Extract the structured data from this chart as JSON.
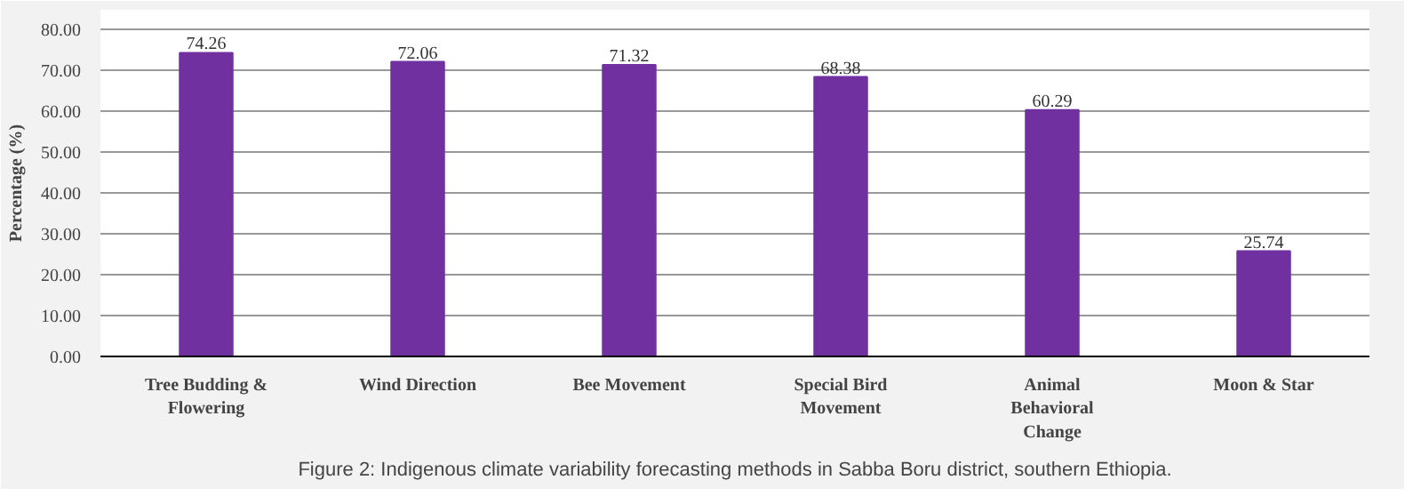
{
  "chart_data": {
    "type": "bar",
    "ylabel": "Percentage (%)",
    "categories": [
      "Tree Budding &\nFlowering",
      "Wind Direction",
      "Bee Movement",
      "Special Bird\nMovement",
      "Animal\nBehavioral\nChange",
      "Moon & Star"
    ],
    "values": [
      74.26,
      72.06,
      71.32,
      68.38,
      60.29,
      25.74
    ],
    "color": "#7030a0",
    "data_labels": true,
    "grid": "y",
    "ylim": [
      0,
      80
    ],
    "yticks": [
      {
        "value": 0,
        "label": "0.00"
      },
      {
        "value": 10,
        "label": "10.00"
      },
      {
        "value": 20,
        "label": "20.00"
      },
      {
        "value": 30,
        "label": "30.00"
      },
      {
        "value": 40,
        "label": "40.00"
      },
      {
        "value": 50,
        "label": "50.00"
      },
      {
        "value": 60,
        "label": "60.00"
      },
      {
        "value": 70,
        "label": "70.00"
      },
      {
        "value": 80,
        "label": "80.00"
      }
    ],
    "annotations": [
      "Figure 2: Indigenous climate variability forecasting methods in Sabba Boru district, southern Ethiopia."
    ]
  }
}
